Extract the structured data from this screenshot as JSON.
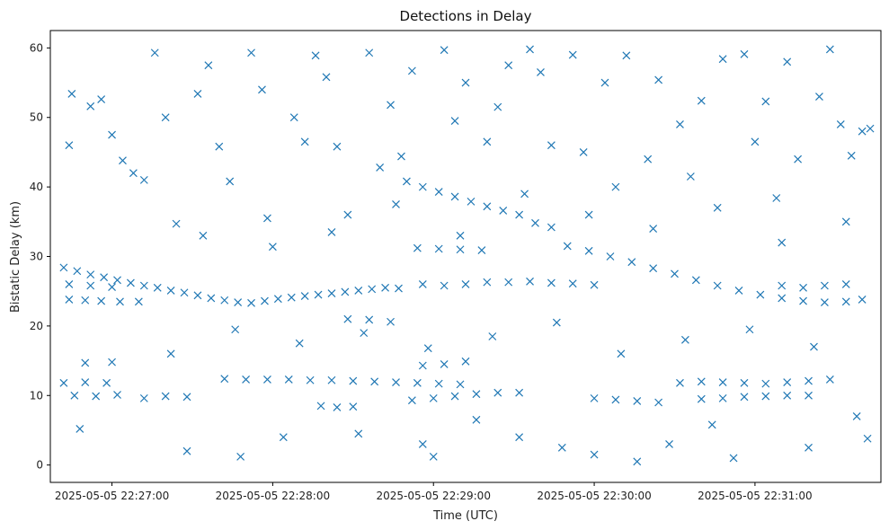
{
  "chart_data": {
    "type": "scatter",
    "title": "Detections in Delay",
    "xlabel": "Time (UTC)",
    "ylabel": "Bistatic Delay (km)",
    "x_ticks": [
      "2025-05-05 22:27:00",
      "2025-05-05 22:28:00",
      "2025-05-05 22:29:00",
      "2025-05-05 22:30:00",
      "2025-05-05 22:31:00"
    ],
    "y_ticks": [
      "0",
      "10",
      "20",
      "30",
      "40",
      "50",
      "60"
    ],
    "xlim": [
      "2025-05-05 22:26:37",
      "2025-05-05 22:31:47"
    ],
    "ylim": [
      -2.5,
      62.5
    ],
    "marker": "x",
    "color": "#1f77b4",
    "series": [
      {
        "points": [
          [
            "2025-05-05 22:26:42",
            28.4
          ],
          [
            "2025-05-05 22:26:47",
            27.9
          ],
          [
            "2025-05-05 22:26:52",
            27.4
          ],
          [
            "2025-05-05 22:26:57",
            27.0
          ],
          [
            "2025-05-05 22:27:02",
            26.6
          ],
          [
            "2025-05-05 22:27:07",
            26.2
          ],
          [
            "2025-05-05 22:27:12",
            25.8
          ],
          [
            "2025-05-05 22:27:17",
            25.5
          ],
          [
            "2025-05-05 22:27:22",
            25.1
          ],
          [
            "2025-05-05 22:27:27",
            24.8
          ],
          [
            "2025-05-05 22:27:32",
            24.4
          ],
          [
            "2025-05-05 22:27:37",
            24.0
          ],
          [
            "2025-05-05 22:27:42",
            23.7
          ],
          [
            "2025-05-05 22:27:47",
            23.4
          ],
          [
            "2025-05-05 22:27:52",
            23.3
          ],
          [
            "2025-05-05 22:27:57",
            23.6
          ],
          [
            "2025-05-05 22:28:02",
            23.9
          ],
          [
            "2025-05-05 22:28:07",
            24.1
          ],
          [
            "2025-05-05 22:28:12",
            24.3
          ],
          [
            "2025-05-05 22:28:17",
            24.5
          ],
          [
            "2025-05-05 22:28:22",
            24.7
          ],
          [
            "2025-05-05 22:28:27",
            24.9
          ],
          [
            "2025-05-05 22:28:32",
            25.1
          ],
          [
            "2025-05-05 22:28:37",
            25.3
          ],
          [
            "2025-05-05 22:28:42",
            25.5
          ],
          [
            "2025-05-05 22:28:47",
            25.4
          ],
          [
            "2025-05-05 22:26:44",
            23.8
          ],
          [
            "2025-05-05 22:26:50",
            23.7
          ],
          [
            "2025-05-05 22:26:56",
            23.6
          ],
          [
            "2025-05-05 22:27:03",
            23.5
          ],
          [
            "2025-05-05 22:27:10",
            23.5
          ],
          [
            "2025-05-05 22:26:44",
            26.0
          ],
          [
            "2025-05-05 22:26:52",
            25.8
          ],
          [
            "2025-05-05 22:27:00",
            25.6
          ],
          [
            "2025-05-05 22:26:42",
            11.8
          ],
          [
            "2025-05-05 22:26:50",
            11.9
          ],
          [
            "2025-05-05 22:26:58",
            11.8
          ],
          [
            "2025-05-05 22:26:46",
            10.0
          ],
          [
            "2025-05-05 22:26:54",
            9.9
          ],
          [
            "2025-05-05 22:27:02",
            10.1
          ],
          [
            "2025-05-05 22:27:12",
            9.6
          ],
          [
            "2025-05-05 22:27:20",
            9.9
          ],
          [
            "2025-05-05 22:27:28",
            9.8
          ],
          [
            "2025-05-05 22:26:50",
            14.7
          ],
          [
            "2025-05-05 22:27:00",
            14.8
          ],
          [
            "2025-05-05 22:27:42",
            12.4
          ],
          [
            "2025-05-05 22:27:50",
            12.3
          ],
          [
            "2025-05-05 22:27:58",
            12.3
          ],
          [
            "2025-05-05 22:28:06",
            12.3
          ],
          [
            "2025-05-05 22:28:14",
            12.2
          ],
          [
            "2025-05-05 22:28:22",
            12.2
          ],
          [
            "2025-05-05 22:28:30",
            12.1
          ],
          [
            "2025-05-05 22:28:38",
            12.0
          ],
          [
            "2025-05-05 22:28:46",
            11.9
          ],
          [
            "2025-05-05 22:28:54",
            11.8
          ],
          [
            "2025-05-05 22:29:02",
            11.7
          ],
          [
            "2025-05-05 22:29:10",
            11.6
          ],
          [
            "2025-05-05 22:28:18",
            8.5
          ],
          [
            "2025-05-05 22:28:24",
            8.3
          ],
          [
            "2025-05-05 22:28:30",
            8.4
          ],
          [
            "2025-05-05 22:28:52",
            9.3
          ],
          [
            "2025-05-05 22:29:00",
            9.6
          ],
          [
            "2025-05-05 22:29:08",
            9.9
          ],
          [
            "2025-05-05 22:29:16",
            10.2
          ],
          [
            "2025-05-05 22:29:24",
            10.4
          ],
          [
            "2025-05-05 22:29:32",
            10.4
          ],
          [
            "2025-05-05 22:28:56",
            14.3
          ],
          [
            "2025-05-05 22:29:04",
            14.5
          ],
          [
            "2025-05-05 22:29:12",
            14.9
          ],
          [
            "2025-05-05 22:28:28",
            21.0
          ],
          [
            "2025-05-05 22:28:36",
            20.9
          ],
          [
            "2025-05-05 22:28:44",
            20.6
          ],
          [
            "2025-05-05 22:28:50",
            40.8
          ],
          [
            "2025-05-05 22:28:56",
            40.0
          ],
          [
            "2025-05-05 22:29:02",
            39.3
          ],
          [
            "2025-05-05 22:29:08",
            38.6
          ],
          [
            "2025-05-05 22:29:14",
            37.9
          ],
          [
            "2025-05-05 22:29:20",
            37.2
          ],
          [
            "2025-05-05 22:29:26",
            36.6
          ],
          [
            "2025-05-05 22:29:32",
            36.0
          ],
          [
            "2025-05-05 22:29:38",
            34.8
          ],
          [
            "2025-05-05 22:29:44",
            34.2
          ],
          [
            "2025-05-05 22:28:54",
            31.2
          ],
          [
            "2025-05-05 22:29:02",
            31.1
          ],
          [
            "2025-05-05 22:29:10",
            31.0
          ],
          [
            "2025-05-05 22:29:18",
            30.9
          ],
          [
            "2025-05-05 22:28:56",
            26.0
          ],
          [
            "2025-05-05 22:29:04",
            25.8
          ],
          [
            "2025-05-05 22:29:12",
            26.0
          ],
          [
            "2025-05-05 22:29:20",
            26.3
          ],
          [
            "2025-05-05 22:29:28",
            26.3
          ],
          [
            "2025-05-05 22:29:36",
            26.4
          ],
          [
            "2025-05-05 22:29:44",
            26.2
          ],
          [
            "2025-05-05 22:29:52",
            26.1
          ],
          [
            "2025-05-05 22:30:00",
            25.9
          ],
          [
            "2025-05-05 22:29:50",
            31.5
          ],
          [
            "2025-05-05 22:29:58",
            30.8
          ],
          [
            "2025-05-05 22:30:06",
            30.0
          ],
          [
            "2025-05-05 22:30:14",
            29.2
          ],
          [
            "2025-05-05 22:30:22",
            28.3
          ],
          [
            "2025-05-05 22:30:30",
            27.5
          ],
          [
            "2025-05-05 22:30:38",
            26.6
          ],
          [
            "2025-05-05 22:30:46",
            25.8
          ],
          [
            "2025-05-05 22:30:54",
            25.1
          ],
          [
            "2025-05-05 22:31:02",
            24.5
          ],
          [
            "2025-05-05 22:31:10",
            24.0
          ],
          [
            "2025-05-05 22:31:18",
            23.6
          ],
          [
            "2025-05-05 22:31:26",
            23.4
          ],
          [
            "2025-05-05 22:31:34",
            23.5
          ],
          [
            "2025-05-05 22:30:00",
            9.6
          ],
          [
            "2025-05-05 22:30:08",
            9.4
          ],
          [
            "2025-05-05 22:30:16",
            9.2
          ],
          [
            "2025-05-05 22:30:24",
            9.0
          ],
          [
            "2025-05-05 22:30:32",
            11.8
          ],
          [
            "2025-05-05 22:30:40",
            12.0
          ],
          [
            "2025-05-05 22:30:48",
            11.9
          ],
          [
            "2025-05-05 22:30:56",
            11.8
          ],
          [
            "2025-05-05 22:31:04",
            11.7
          ],
          [
            "2025-05-05 22:31:12",
            11.9
          ],
          [
            "2025-05-05 22:31:20",
            12.1
          ],
          [
            "2025-05-05 22:31:28",
            12.3
          ],
          [
            "2025-05-05 22:30:40",
            9.5
          ],
          [
            "2025-05-05 22:30:48",
            9.6
          ],
          [
            "2025-05-05 22:30:56",
            9.8
          ],
          [
            "2025-05-05 22:31:04",
            9.9
          ],
          [
            "2025-05-05 22:31:12",
            10.0
          ],
          [
            "2025-05-05 22:31:20",
            10.0
          ],
          [
            "2025-05-05 22:31:10",
            25.8
          ],
          [
            "2025-05-05 22:31:18",
            25.5
          ],
          [
            "2025-05-05 22:31:26",
            25.8
          ],
          [
            "2025-05-05 22:31:34",
            26.0
          ],
          [
            "2025-05-05 22:31:40",
            23.8
          ],
          [
            "2025-05-05 22:26:45",
            53.4
          ],
          [
            "2025-05-05 22:26:44",
            46.0
          ],
          [
            "2025-05-05 22:26:48",
            5.2
          ],
          [
            "2025-05-05 22:26:52",
            51.6
          ],
          [
            "2025-05-05 22:26:56",
            52.6
          ],
          [
            "2025-05-05 22:27:00",
            47.5
          ],
          [
            "2025-05-05 22:27:04",
            43.8
          ],
          [
            "2025-05-05 22:27:08",
            42.0
          ],
          [
            "2025-05-05 22:27:12",
            41.0
          ],
          [
            "2025-05-05 22:27:16",
            59.3
          ],
          [
            "2025-05-05 22:27:20",
            50.0
          ],
          [
            "2025-05-05 22:27:24",
            34.7
          ],
          [
            "2025-05-05 22:27:28",
            2.0
          ],
          [
            "2025-05-05 22:27:32",
            53.4
          ],
          [
            "2025-05-05 22:27:36",
            57.5
          ],
          [
            "2025-05-05 22:27:40",
            45.8
          ],
          [
            "2025-05-05 22:27:44",
            40.8
          ],
          [
            "2025-05-05 22:27:48",
            1.2
          ],
          [
            "2025-05-05 22:27:52",
            59.3
          ],
          [
            "2025-05-05 22:27:56",
            54.0
          ],
          [
            "2025-05-05 22:28:00",
            31.4
          ],
          [
            "2025-05-05 22:28:04",
            4.0
          ],
          [
            "2025-05-05 22:28:08",
            50.0
          ],
          [
            "2025-05-05 22:28:12",
            46.5
          ],
          [
            "2025-05-05 22:28:16",
            58.9
          ],
          [
            "2025-05-05 22:28:20",
            55.8
          ],
          [
            "2025-05-05 22:28:24",
            45.8
          ],
          [
            "2025-05-05 22:28:28",
            36.0
          ],
          [
            "2025-05-05 22:28:32",
            4.5
          ],
          [
            "2025-05-05 22:28:36",
            59.3
          ],
          [
            "2025-05-05 22:28:40",
            42.8
          ],
          [
            "2025-05-05 22:28:44",
            51.8
          ],
          [
            "2025-05-05 22:28:48",
            44.4
          ],
          [
            "2025-05-05 22:28:52",
            56.7
          ],
          [
            "2025-05-05 22:28:56",
            3.0
          ],
          [
            "2025-05-05 22:29:00",
            1.2
          ],
          [
            "2025-05-05 22:29:04",
            59.7
          ],
          [
            "2025-05-05 22:29:08",
            49.5
          ],
          [
            "2025-05-05 22:29:12",
            55.0
          ],
          [
            "2025-05-05 22:29:16",
            6.5
          ],
          [
            "2025-05-05 22:29:20",
            46.5
          ],
          [
            "2025-05-05 22:29:24",
            51.5
          ],
          [
            "2025-05-05 22:29:28",
            57.5
          ],
          [
            "2025-05-05 22:29:32",
            4.0
          ],
          [
            "2025-05-05 22:29:36",
            59.8
          ],
          [
            "2025-05-05 22:29:40",
            56.5
          ],
          [
            "2025-05-05 22:29:44",
            46.0
          ],
          [
            "2025-05-05 22:29:48",
            2.5
          ],
          [
            "2025-05-05 22:29:52",
            59.0
          ],
          [
            "2025-05-05 22:29:56",
            45.0
          ],
          [
            "2025-05-05 22:30:00",
            1.5
          ],
          [
            "2025-05-05 22:30:04",
            55.0
          ],
          [
            "2025-05-05 22:30:08",
            40.0
          ],
          [
            "2025-05-05 22:30:12",
            58.9
          ],
          [
            "2025-05-05 22:30:16",
            0.5
          ],
          [
            "2025-05-05 22:30:20",
            44.0
          ],
          [
            "2025-05-05 22:30:24",
            55.4
          ],
          [
            "2025-05-05 22:30:28",
            3.0
          ],
          [
            "2025-05-05 22:30:32",
            49.0
          ],
          [
            "2025-05-05 22:30:36",
            41.5
          ],
          [
            "2025-05-05 22:30:40",
            52.4
          ],
          [
            "2025-05-05 22:30:44",
            5.8
          ],
          [
            "2025-05-05 22:30:48",
            58.4
          ],
          [
            "2025-05-05 22:30:52",
            1.0
          ],
          [
            "2025-05-05 22:30:56",
            59.1
          ],
          [
            "2025-05-05 22:31:00",
            46.5
          ],
          [
            "2025-05-05 22:31:04",
            52.3
          ],
          [
            "2025-05-05 22:31:08",
            38.4
          ],
          [
            "2025-05-05 22:31:12",
            58.0
          ],
          [
            "2025-05-05 22:31:16",
            44.0
          ],
          [
            "2025-05-05 22:31:20",
            2.5
          ],
          [
            "2025-05-05 22:31:24",
            53.0
          ],
          [
            "2025-05-05 22:31:28",
            59.8
          ],
          [
            "2025-05-05 22:31:32",
            49.0
          ],
          [
            "2025-05-05 22:31:36",
            44.5
          ],
          [
            "2025-05-05 22:31:40",
            48.0
          ],
          [
            "2025-05-05 22:31:43",
            48.4
          ],
          [
            "2025-05-05 22:31:42",
            3.8
          ],
          [
            "2025-05-05 22:31:38",
            7.0
          ],
          [
            "2025-05-05 22:27:22",
            16.0
          ],
          [
            "2025-05-05 22:27:46",
            19.5
          ],
          [
            "2025-05-05 22:28:10",
            17.5
          ],
          [
            "2025-05-05 22:28:34",
            19.0
          ],
          [
            "2025-05-05 22:28:58",
            16.8
          ],
          [
            "2025-05-05 22:29:22",
            18.5
          ],
          [
            "2025-05-05 22:29:46",
            20.5
          ],
          [
            "2025-05-05 22:30:10",
            16.0
          ],
          [
            "2025-05-05 22:30:34",
            18.0
          ],
          [
            "2025-05-05 22:30:58",
            19.5
          ],
          [
            "2025-05-05 22:31:22",
            17.0
          ],
          [
            "2025-05-05 22:27:34",
            33.0
          ],
          [
            "2025-05-05 22:27:58",
            35.5
          ],
          [
            "2025-05-05 22:28:22",
            33.5
          ],
          [
            "2025-05-05 22:28:46",
            37.5
          ],
          [
            "2025-05-05 22:29:10",
            33.0
          ],
          [
            "2025-05-05 22:29:34",
            39.0
          ],
          [
            "2025-05-05 22:29:58",
            36.0
          ],
          [
            "2025-05-05 22:30:22",
            34.0
          ],
          [
            "2025-05-05 22:30:46",
            37.0
          ],
          [
            "2025-05-05 22:31:10",
            32.0
          ],
          [
            "2025-05-05 22:31:34",
            35.0
          ]
        ]
      }
    ]
  }
}
